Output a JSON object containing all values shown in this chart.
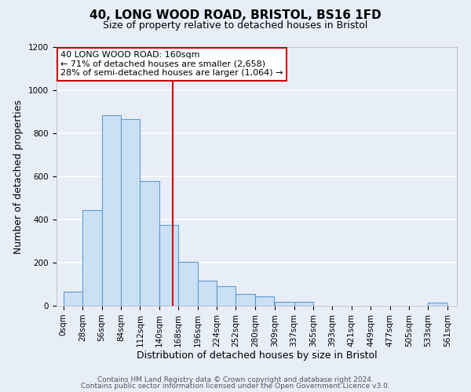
{
  "title": "40, LONG WOOD ROAD, BRISTOL, BS16 1FD",
  "subtitle": "Size of property relative to detached houses in Bristol",
  "xlabel": "Distribution of detached houses by size in Bristol",
  "ylabel": "Number of detached properties",
  "bar_left_edges": [
    0,
    28,
    56,
    84,
    112,
    140,
    168,
    196,
    224,
    252,
    280,
    309,
    337,
    365,
    393,
    421,
    449,
    477,
    505,
    533
  ],
  "bar_heights": [
    65,
    445,
    885,
    865,
    580,
    375,
    205,
    115,
    90,
    55,
    42,
    20,
    18,
    0,
    0,
    0,
    0,
    0,
    0,
    15
  ],
  "bin_width": 28,
  "xtick_labels": [
    "0sqm",
    "28sqm",
    "56sqm",
    "84sqm",
    "112sqm",
    "140sqm",
    "168sqm",
    "196sqm",
    "224sqm",
    "252sqm",
    "280sqm",
    "309sqm",
    "337sqm",
    "365sqm",
    "393sqm",
    "421sqm",
    "449sqm",
    "477sqm",
    "505sqm",
    "533sqm",
    "561sqm"
  ],
  "xtick_positions": [
    0,
    28,
    56,
    84,
    112,
    140,
    168,
    196,
    224,
    252,
    280,
    309,
    337,
    365,
    393,
    421,
    449,
    477,
    505,
    533,
    561
  ],
  "ylim": [
    0,
    1200
  ],
  "yticks": [
    0,
    200,
    400,
    600,
    800,
    1000,
    1200
  ],
  "bar_fill_color": "#cce0f5",
  "bar_edge_color": "#5b9bd5",
  "vline_x": 160,
  "vline_color": "#cc0000",
  "annotation_line1": "40 LONG WOOD ROAD: 160sqm",
  "annotation_line2": "← 71% of detached houses are smaller (2,658)",
  "annotation_line3": "28% of semi-detached houses are larger (1,064) →",
  "annotation_box_edge_color": "#cc0000",
  "footer_line1": "Contains HM Land Registry data © Crown copyright and database right 2024.",
  "footer_line2": "Contains public sector information licensed under the Open Government Licence v3.0.",
  "background_color": "#e8eef7",
  "plot_bg_color": "#e8eef7",
  "title_fontsize": 11,
  "subtitle_fontsize": 9,
  "axis_label_fontsize": 9,
  "tick_fontsize": 7.5,
  "annotation_fontsize": 8,
  "footer_fontsize": 6.5
}
